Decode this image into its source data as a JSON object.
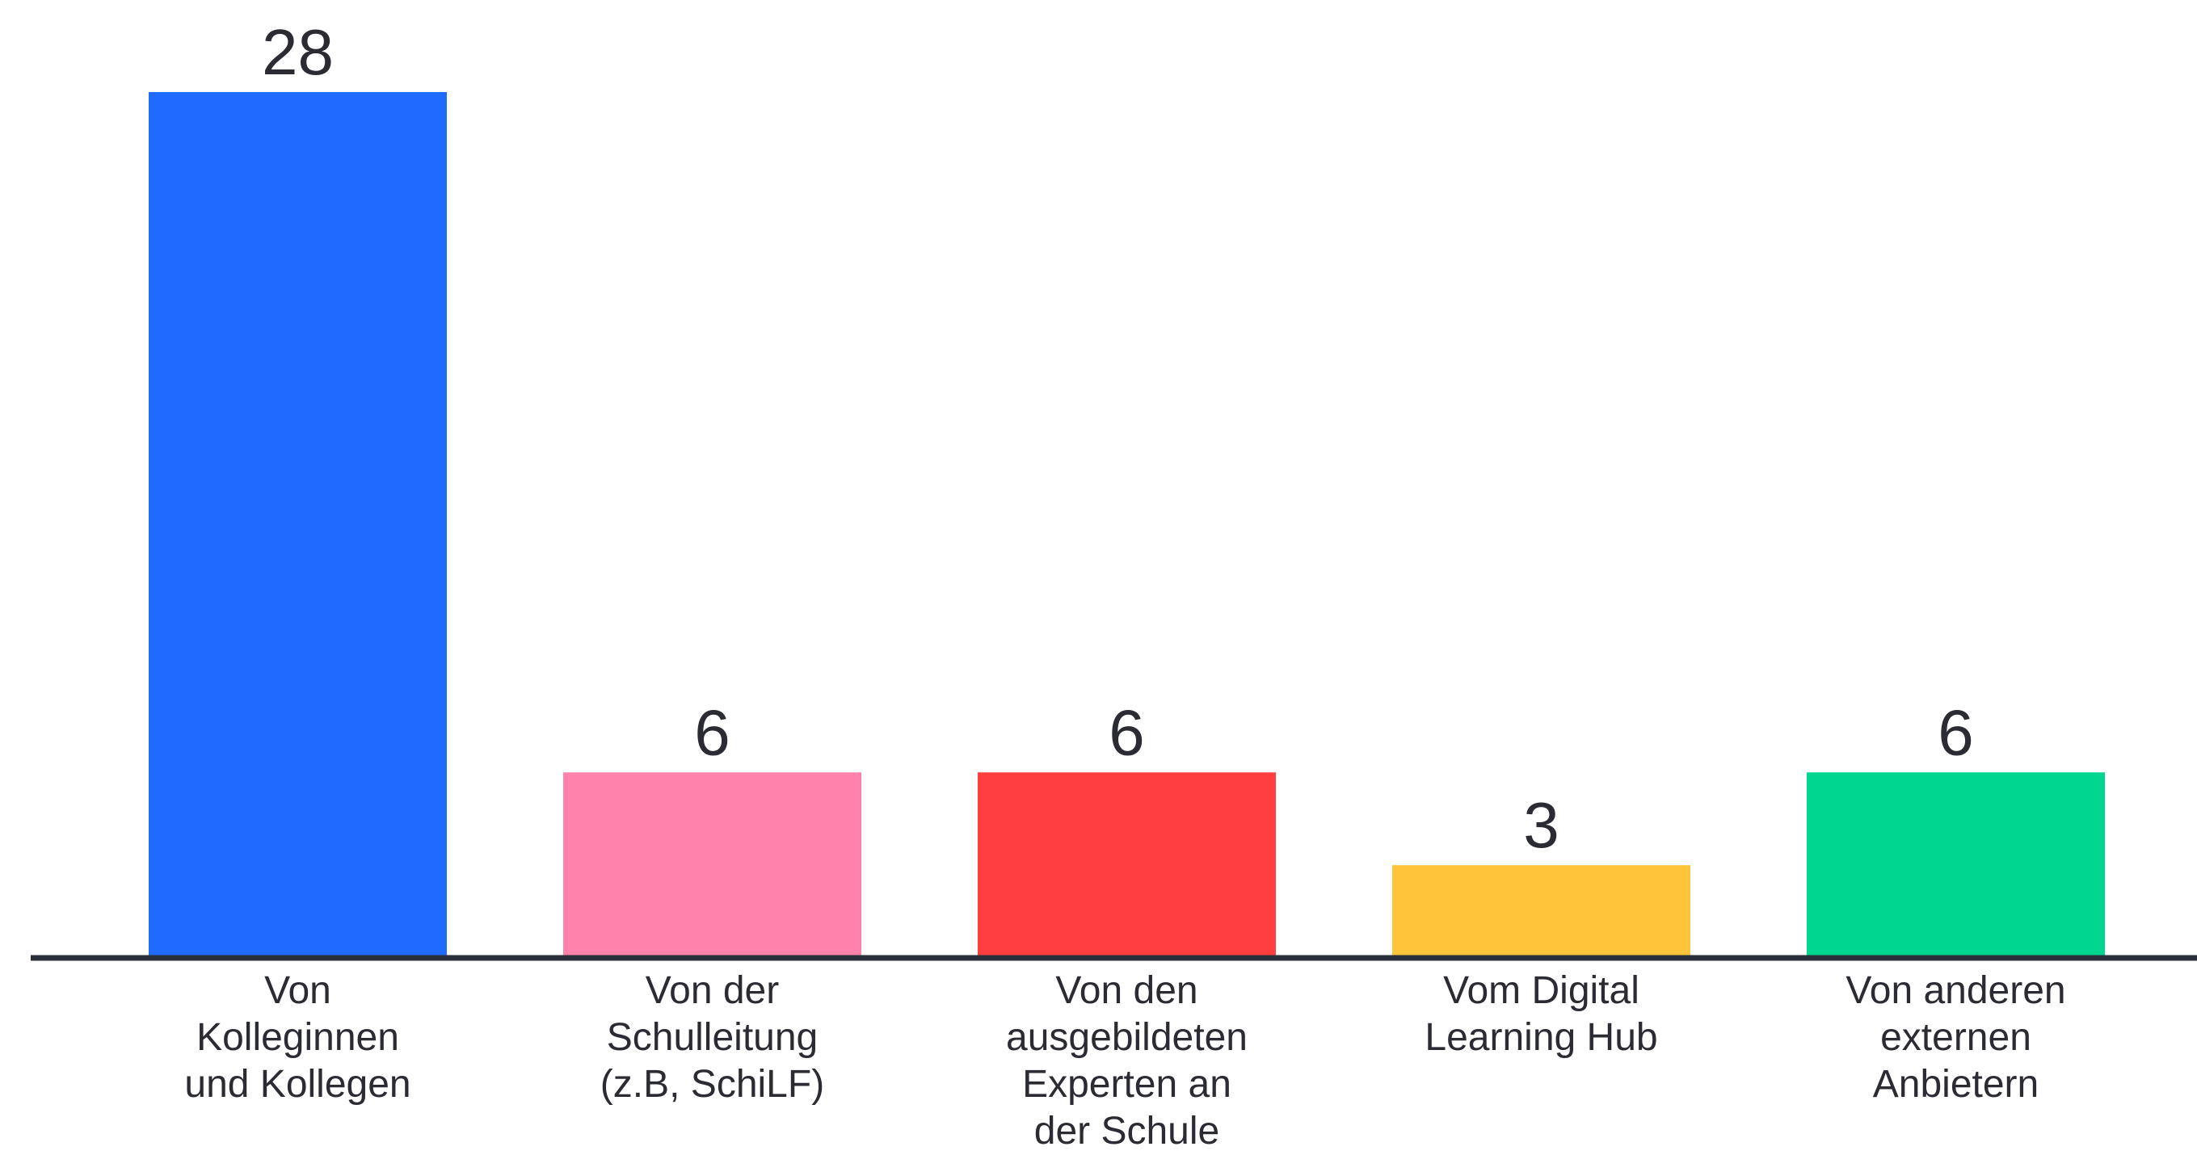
{
  "chart_data": {
    "type": "bar",
    "categories": [
      "Von\nKolleginnen\nund Kollegen",
      "Von der\nSchulleitung\n(z.B, SchiLF)",
      "Von den\nausgebildeten\nExperten an\nder Schule",
      "Vom Digital\nLearning Hub",
      "Von anderen\nexternen\nAnbietern"
    ],
    "values": [
      28,
      6,
      6,
      3,
      6
    ],
    "colors": [
      "#1f6bff",
      "#ff82ad",
      "#ff3f3f",
      "#ffc43a",
      "#00d68f"
    ]
  }
}
